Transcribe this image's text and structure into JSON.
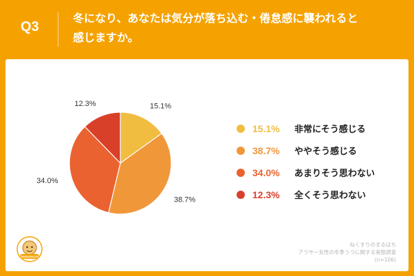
{
  "header": {
    "qnum": "Q3",
    "line1": "冬になり、あなたは気分が落ち込む・倦怠感に襲われると",
    "line2": "感じますか。"
  },
  "footer": {
    "line1": "ねくすりのまるはち",
    "line2": "アラサー女性の冬季うつに関する実態調査",
    "line3": "(n=106)"
  },
  "logo_text": "MARUHACHI",
  "chart_data": {
    "type": "pie",
    "title": "",
    "slices": [
      {
        "label": "非常にそう感じる",
        "value": 15.1,
        "display": "15.1%",
        "color": "#f0bd40"
      },
      {
        "label": "ややそう感じる",
        "value": 38.7,
        "display": "38.7%",
        "color": "#f0973a"
      },
      {
        "label": "あまりそう思わない",
        "value": 34.0,
        "display": "34.0%",
        "color": "#ea622f"
      },
      {
        "label": "全くそう思わない",
        "value": 12.3,
        "display": "12.3%",
        "color": "#d9402a"
      }
    ],
    "start_angle": "12 o'clock",
    "direction": "clockwise",
    "legend_position": "right"
  }
}
